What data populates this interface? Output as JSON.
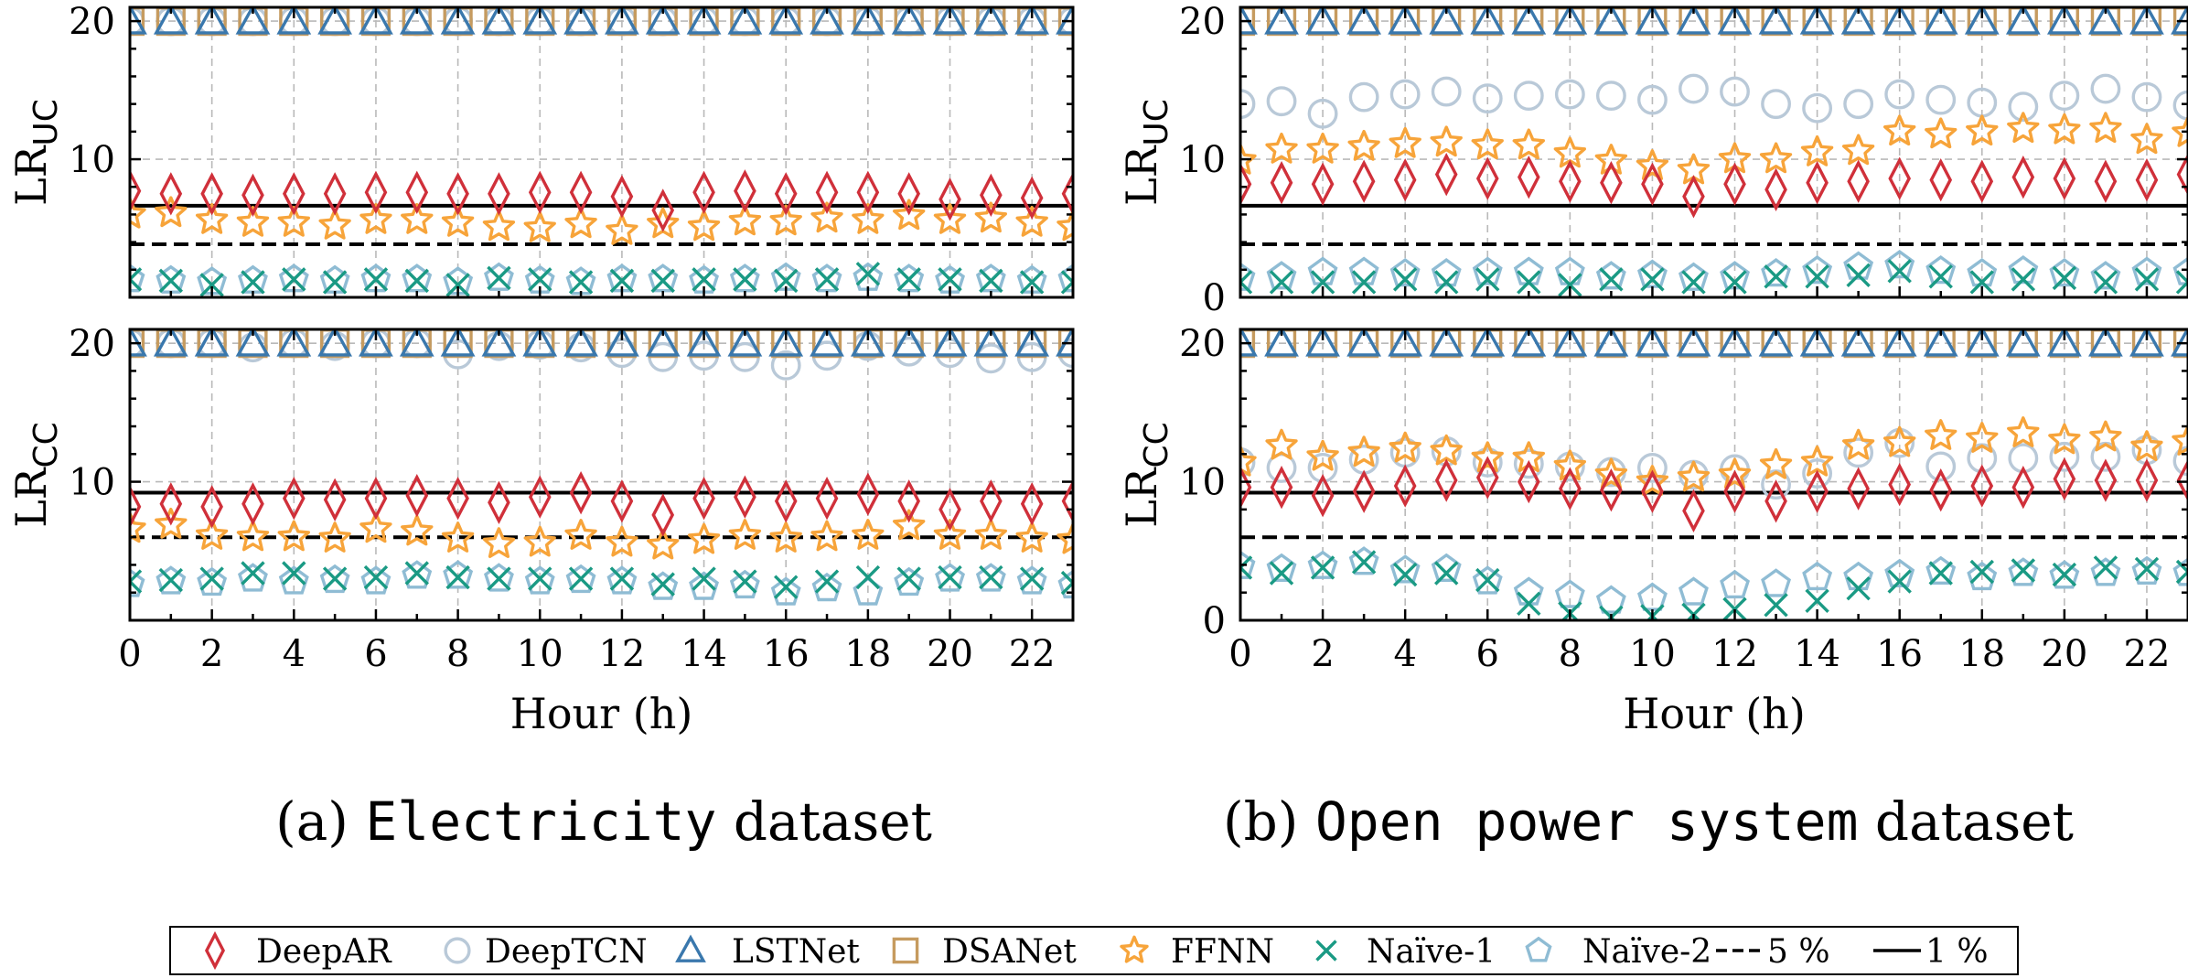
{
  "colors": {
    "DeepAR": "#d0303a",
    "DeepTCN": "#b9c9d8",
    "LSTNet": "#3a78ad",
    "DSANet": "#c69b5f",
    "FFNN": "#f7a43a",
    "Naive1": "#1a9a84",
    "Naive2": "#8fbcd4",
    "threshold": "#000000",
    "grid": "#b9b9b9"
  },
  "captions": [
    {
      "prefix": "(a) ",
      "name": "Electricity",
      "suffix": " dataset"
    },
    {
      "prefix": "(b) ",
      "name": "Open power system",
      "suffix": " dataset"
    }
  ],
  "xlabel": "Hour (h)",
  "legend": {
    "items": [
      {
        "key": "DeepAR",
        "label": "DeepAR",
        "marker": "diamond"
      },
      {
        "key": "DeepTCN",
        "label": "DeepTCN",
        "marker": "circle"
      },
      {
        "key": "LSTNet",
        "label": "LSTNet",
        "marker": "triangle"
      },
      {
        "key": "DSANet",
        "label": "DSANet",
        "marker": "square"
      },
      {
        "key": "FFNN",
        "label": "FFNN",
        "marker": "star"
      },
      {
        "key": "Naive1",
        "label": "Naïve-1",
        "marker": "x"
      },
      {
        "key": "Naive2",
        "label": "Naïve-2",
        "marker": "pentagon"
      },
      {
        "key": "t5",
        "label": "5 %",
        "marker": "dashed"
      },
      {
        "key": "t1",
        "label": "1 %",
        "marker": "solid"
      }
    ]
  },
  "chart_data": [
    {
      "id": "elec-uc",
      "type": "scatter",
      "ylabel": {
        "main": "LR",
        "sub": "UC"
      },
      "xlim": [
        0,
        23
      ],
      "ylim": [
        0,
        21
      ],
      "xticks": [
        0,
        2,
        4,
        6,
        8,
        10,
        12,
        14,
        16,
        18,
        20,
        22
      ],
      "yticks": [
        10,
        20
      ],
      "thresholds": {
        "1 %": 6.63,
        "5 %": 3.84
      },
      "series": [
        {
          "key": "DeepAR",
          "values": [
            7.7,
            7.5,
            7.5,
            7.4,
            7.5,
            7.5,
            7.6,
            7.6,
            7.5,
            7.5,
            7.6,
            7.6,
            7.3,
            6.3,
            7.6,
            7.7,
            7.5,
            7.6,
            7.6,
            7.5,
            7.1,
            7.4,
            7.2,
            7.5
          ]
        },
        {
          "key": "DeepTCN",
          "values": [
            20,
            20,
            20,
            20,
            20,
            20,
            20,
            20,
            20,
            20,
            20,
            20,
            20,
            20,
            20,
            20,
            20,
            20,
            20,
            20,
            20,
            20,
            20,
            20
          ]
        },
        {
          "key": "LSTNet",
          "values": [
            20,
            20,
            20,
            20,
            20,
            20,
            20,
            20,
            20,
            20,
            20,
            20,
            20,
            20,
            20,
            20,
            20,
            20,
            20,
            20,
            20,
            20,
            20,
            20
          ]
        },
        {
          "key": "DSANet",
          "values": [
            20,
            20,
            20,
            20,
            20,
            20,
            20,
            20,
            20,
            20,
            20,
            20,
            20,
            20,
            20,
            20,
            20,
            20,
            20,
            20,
            20,
            20,
            20,
            20
          ]
        },
        {
          "key": "FFNN",
          "values": [
            6.0,
            6.1,
            5.6,
            5.4,
            5.4,
            5.2,
            5.6,
            5.6,
            5.4,
            5.1,
            5.0,
            5.3,
            4.8,
            5.3,
            5.1,
            5.5,
            5.5,
            5.7,
            5.6,
            5.9,
            5.6,
            5.7,
            5.4,
            5.1
          ]
        },
        {
          "key": "Naive1",
          "values": [
            1.3,
            1.2,
            0.9,
            1.1,
            1.3,
            1.1,
            1.3,
            1.2,
            0.9,
            1.4,
            1.3,
            1.1,
            1.2,
            1.2,
            1.3,
            1.3,
            1.2,
            1.3,
            1.7,
            1.3,
            1.3,
            1.2,
            1.1,
            1.1
          ]
        },
        {
          "key": "Naive2",
          "values": [
            1.3,
            1.2,
            1.1,
            1.2,
            1.3,
            1.2,
            1.3,
            1.3,
            1.1,
            1.4,
            1.2,
            1.1,
            1.3,
            1.3,
            1.2,
            1.3,
            1.4,
            1.3,
            1.4,
            1.3,
            1.2,
            1.3,
            1.2,
            1.3
          ]
        }
      ]
    },
    {
      "id": "elec-cc",
      "type": "scatter",
      "ylabel": {
        "main": "LR",
        "sub": "CC"
      },
      "xlim": [
        0,
        23
      ],
      "ylim": [
        0,
        21
      ],
      "xticks": [
        0,
        2,
        4,
        6,
        8,
        10,
        12,
        14,
        16,
        18,
        20,
        22
      ],
      "yticks": [
        10,
        20
      ],
      "thresholds": {
        "1 %": 9.21,
        "5 %": 5.99
      },
      "series": [
        {
          "key": "DeepAR",
          "values": [
            8.2,
            8.4,
            8.2,
            8.4,
            8.8,
            8.7,
            8.8,
            9.0,
            8.8,
            8.5,
            8.9,
            9.2,
            8.6,
            7.6,
            8.8,
            8.9,
            8.6,
            8.8,
            9.1,
            8.6,
            8.0,
            8.6,
            8.4,
            8.6
          ]
        },
        {
          "key": "DeepTCN",
          "values": [
            20,
            20,
            20,
            19.7,
            20,
            19.8,
            20,
            20,
            19.2,
            19.8,
            19.9,
            19.7,
            19.3,
            19.0,
            19.1,
            19.0,
            18.4,
            19.1,
            19.8,
            19.4,
            19.3,
            18.9,
            19.0,
            19.3
          ]
        },
        {
          "key": "LSTNet",
          "values": [
            20,
            20,
            20,
            20,
            20,
            20,
            20,
            20,
            20,
            20,
            20,
            20,
            20,
            20,
            20,
            20,
            20,
            20,
            20,
            20,
            20,
            20,
            20,
            20
          ]
        },
        {
          "key": "DSANet",
          "values": [
            20,
            20,
            20,
            20,
            20,
            20,
            20,
            20,
            20,
            20,
            20,
            20,
            20,
            20,
            20,
            20,
            20,
            20,
            20,
            20,
            20,
            20,
            20,
            20
          ]
        },
        {
          "key": "FFNN",
          "values": [
            6.6,
            6.9,
            6.1,
            6.0,
            6.0,
            5.9,
            6.6,
            6.4,
            5.9,
            5.5,
            5.6,
            6.1,
            5.6,
            5.4,
            5.8,
            6.1,
            5.9,
            6.0,
            6.1,
            6.8,
            6.1,
            6.1,
            5.9,
            5.8
          ]
        },
        {
          "key": "Naive1",
          "values": [
            2.8,
            2.9,
            3.0,
            3.4,
            3.4,
            3.0,
            3.1,
            3.4,
            3.1,
            3.0,
            3.0,
            3.0,
            3.0,
            2.6,
            3.0,
            2.8,
            2.4,
            2.8,
            3.1,
            3.0,
            3.1,
            3.1,
            3.0,
            2.7
          ]
        },
        {
          "key": "Naive2",
          "values": [
            2.6,
            2.8,
            2.7,
            3.0,
            2.8,
            2.9,
            2.8,
            3.2,
            3.2,
            3.0,
            2.8,
            2.9,
            2.8,
            2.4,
            2.4,
            2.5,
            2.0,
            2.3,
            2.0,
            2.7,
            3.0,
            3.0,
            2.8,
            2.5
          ]
        }
      ]
    },
    {
      "id": "ops-uc",
      "type": "scatter",
      "ylabel": {
        "main": "LR",
        "sub": "UC"
      },
      "xlim": [
        0,
        23
      ],
      "ylim": [
        0,
        21
      ],
      "xticks": [
        0,
        2,
        4,
        6,
        8,
        10,
        12,
        14,
        16,
        18,
        20,
        22
      ],
      "yticks": [
        0,
        10,
        20
      ],
      "thresholds": {
        "1 %": 6.63,
        "5 %": 3.84
      },
      "series": [
        {
          "key": "DeepAR",
          "values": [
            8.2,
            8.3,
            8.2,
            8.4,
            8.5,
            8.9,
            8.6,
            8.7,
            8.4,
            8.3,
            8.2,
            7.3,
            8.2,
            7.8,
            8.3,
            8.4,
            8.6,
            8.5,
            8.4,
            8.7,
            8.6,
            8.4,
            8.5,
            8.9
          ]
        },
        {
          "key": "DeepTCN",
          "values": [
            14.0,
            14.2,
            13.3,
            14.5,
            14.7,
            14.9,
            14.4,
            14.6,
            14.7,
            14.6,
            14.3,
            15.1,
            14.9,
            14.0,
            13.7,
            14.0,
            14.7,
            14.3,
            14.1,
            13.8,
            14.6,
            15.1,
            14.5,
            13.9
          ]
        },
        {
          "key": "LSTNet",
          "values": [
            20,
            20,
            20,
            20,
            20,
            20,
            20,
            20,
            20,
            20,
            20,
            20,
            20,
            20,
            20,
            20,
            20,
            20,
            20,
            20,
            20,
            20,
            20,
            20
          ]
        },
        {
          "key": "DSANet",
          "values": [
            20,
            20,
            20,
            20,
            20,
            20,
            20,
            20,
            20,
            20,
            20,
            20,
            20,
            20,
            20,
            20,
            20,
            20,
            20,
            20,
            20,
            20,
            20,
            20
          ]
        },
        {
          "key": "FFNN",
          "values": [
            9.9,
            10.7,
            10.7,
            10.9,
            11.1,
            11.2,
            11.0,
            11.0,
            10.4,
            9.9,
            9.5,
            9.2,
            10.0,
            10.0,
            10.5,
            10.6,
            12.0,
            11.8,
            12.0,
            12.2,
            12.1,
            12.2,
            11.4,
            11.9
          ]
        },
        {
          "key": "Naive1",
          "values": [
            1.1,
            1.1,
            1.1,
            1.1,
            1.3,
            1.1,
            1.3,
            1.1,
            0.9,
            1.3,
            1.3,
            1.1,
            1.1,
            1.5,
            1.5,
            1.6,
            1.9,
            1.5,
            1.1,
            1.3,
            1.4,
            1.1,
            1.3,
            1.1
          ]
        },
        {
          "key": "Naive2",
          "values": [
            1.4,
            1.5,
            1.8,
            1.8,
            1.7,
            1.7,
            1.8,
            1.8,
            1.8,
            1.5,
            1.6,
            1.4,
            1.5,
            1.7,
            1.9,
            2.2,
            2.3,
            1.9,
            1.7,
            1.9,
            1.7,
            1.5,
            1.8,
            1.8
          ]
        }
      ]
    },
    {
      "id": "ops-cc",
      "type": "scatter",
      "ylabel": {
        "main": "LR",
        "sub": "CC"
      },
      "xlim": [
        0,
        23
      ],
      "ylim": [
        0,
        21
      ],
      "xticks": [
        0,
        2,
        4,
        6,
        8,
        10,
        12,
        14,
        16,
        18,
        20,
        22
      ],
      "yticks": [
        0,
        10,
        20
      ],
      "thresholds": {
        "1 %": 9.21,
        "5 %": 5.99
      },
      "series": [
        {
          "key": "DeepAR",
          "values": [
            9.6,
            9.6,
            9.0,
            9.3,
            9.7,
            10.1,
            10.3,
            10.0,
            9.5,
            9.4,
            9.3,
            7.9,
            9.3,
            8.6,
            9.3,
            9.5,
            9.8,
            9.4,
            9.7,
            9.6,
            10.2,
            10.1,
            10.1,
            10.1
          ]
        },
        {
          "key": "DeepTCN",
          "values": [
            11.4,
            11.0,
            11.0,
            11.6,
            12.1,
            12.2,
            11.4,
            11.3,
            11.1,
            10.7,
            11.0,
            10.5,
            10.9,
            9.8,
            10.6,
            12.1,
            12.8,
            11.1,
            11.7,
            11.7,
            11.8,
            11.8,
            12.3,
            11.5
          ]
        },
        {
          "key": "LSTNet",
          "values": [
            20,
            20,
            20,
            20,
            20,
            20,
            20,
            20,
            20,
            20,
            20,
            20,
            20,
            20,
            20,
            20,
            20,
            20,
            20,
            20,
            20,
            20,
            20,
            20
          ]
        },
        {
          "key": "DSANet",
          "values": [
            20,
            20,
            20,
            20,
            20,
            20,
            20,
            20,
            20,
            20,
            20,
            20,
            20,
            20,
            20,
            20,
            20,
            20,
            20,
            20,
            20,
            20,
            20,
            20
          ]
        },
        {
          "key": "FFNN",
          "values": [
            11.4,
            12.6,
            11.8,
            12.1,
            12.4,
            12.2,
            11.7,
            11.7,
            11.1,
            10.5,
            10.0,
            10.3,
            10.5,
            11.2,
            11.4,
            12.6,
            12.8,
            13.3,
            13.1,
            13.5,
            13.0,
            13.2,
            12.5,
            12.9
          ]
        },
        {
          "key": "Naive1",
          "values": [
            3.8,
            3.4,
            3.8,
            4.2,
            3.3,
            3.4,
            2.9,
            1.2,
            0.5,
            0.2,
            0.3,
            0.4,
            0.8,
            1.1,
            1.4,
            2.3,
            2.8,
            3.4,
            3.5,
            3.6,
            3.3,
            3.8,
            3.7,
            3.5
          ]
        },
        {
          "key": "Naive2",
          "values": [
            3.9,
            3.7,
            3.9,
            4.2,
            3.6,
            3.7,
            2.8,
            2.0,
            1.8,
            1.4,
            1.6,
            2.0,
            2.5,
            2.6,
            3.1,
            3.1,
            3.3,
            3.5,
            3.1,
            3.4,
            3.2,
            3.4,
            3.5,
            3.4
          ]
        }
      ]
    }
  ]
}
